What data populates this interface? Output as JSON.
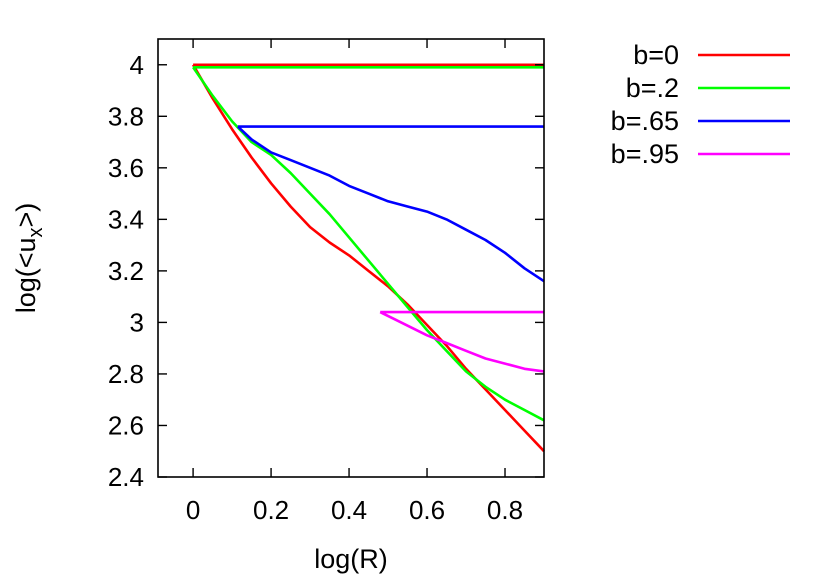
{
  "chart_data": {
    "type": "line",
    "xlabel": "log(R)",
    "ylabel_main": "log(<u",
    "ylabel_sub": "x",
    "ylabel_end": ">)",
    "xlim": [
      -0.09,
      0.9
    ],
    "ylim": [
      2.4,
      4.1
    ],
    "xticks": [
      {
        "value": 0,
        "label": "0"
      },
      {
        "value": 0.2,
        "label": "0.2"
      },
      {
        "value": 0.4,
        "label": "0.4"
      },
      {
        "value": 0.6,
        "label": "0.6"
      },
      {
        "value": 0.8,
        "label": "0.8"
      }
    ],
    "yticks": [
      {
        "value": 2.4,
        "label": "2.4"
      },
      {
        "value": 2.6,
        "label": "2.6"
      },
      {
        "value": 2.8,
        "label": "2.8"
      },
      {
        "value": 3.0,
        "label": "3"
      },
      {
        "value": 3.2,
        "label": "3.2"
      },
      {
        "value": 3.4,
        "label": "3.4"
      },
      {
        "value": 3.6,
        "label": "3.6"
      },
      {
        "value": 3.8,
        "label": "3.8"
      },
      {
        "value": 4.0,
        "label": "4"
      }
    ],
    "grid": false,
    "legend_position": "outside-top-right",
    "series": [
      {
        "name": "b=0",
        "color": "#ff0000",
        "x": [
          0,
          0.9,
          null,
          0,
          0.05,
          0.1,
          0.15,
          0.2,
          0.25,
          0.3,
          0.35,
          0.4,
          0.45,
          0.5,
          0.55,
          0.6,
          0.65,
          0.7,
          0.75,
          0.8,
          0.85,
          0.9
        ],
        "y": [
          4.0,
          4.0,
          null,
          4.0,
          3.87,
          3.75,
          3.64,
          3.54,
          3.45,
          3.37,
          3.31,
          3.26,
          3.2,
          3.14,
          3.07,
          2.99,
          2.91,
          2.82,
          2.74,
          2.66,
          2.58,
          2.5
        ]
      },
      {
        "name": "b=.2",
        "color": "#00ff00",
        "x": [
          0,
          0.9,
          null,
          0,
          0.05,
          0.1,
          0.15,
          0.2,
          0.25,
          0.3,
          0.35,
          0.4,
          0.45,
          0.5,
          0.55,
          0.6,
          0.65,
          0.7,
          0.75,
          0.8,
          0.85,
          0.9
        ],
        "y": [
          3.99,
          3.99,
          null,
          3.99,
          3.88,
          3.78,
          3.7,
          3.65,
          3.58,
          3.5,
          3.42,
          3.33,
          3.24,
          3.15,
          3.06,
          2.97,
          2.89,
          2.81,
          2.75,
          2.7,
          2.66,
          2.62
        ]
      },
      {
        "name": "b=.65",
        "color": "#0000ff",
        "x": [
          0.115,
          0.9,
          null,
          0.115,
          0.15,
          0.2,
          0.25,
          0.3,
          0.35,
          0.4,
          0.45,
          0.5,
          0.55,
          0.6,
          0.65,
          0.7,
          0.75,
          0.8,
          0.85,
          0.9
        ],
        "y": [
          3.76,
          3.76,
          null,
          3.76,
          3.71,
          3.66,
          3.63,
          3.6,
          3.57,
          3.53,
          3.5,
          3.47,
          3.45,
          3.43,
          3.4,
          3.36,
          3.32,
          3.27,
          3.21,
          3.16
        ]
      },
      {
        "name": "b=.95",
        "color": "#ff00ff",
        "x": [
          0.48,
          0.9,
          null,
          0.48,
          0.52,
          0.56,
          0.6,
          0.65,
          0.7,
          0.75,
          0.8,
          0.85,
          0.9
        ],
        "y": [
          3.04,
          3.04,
          null,
          3.04,
          3.01,
          2.98,
          2.95,
          2.92,
          2.89,
          2.86,
          2.84,
          2.82,
          2.81
        ]
      }
    ]
  }
}
